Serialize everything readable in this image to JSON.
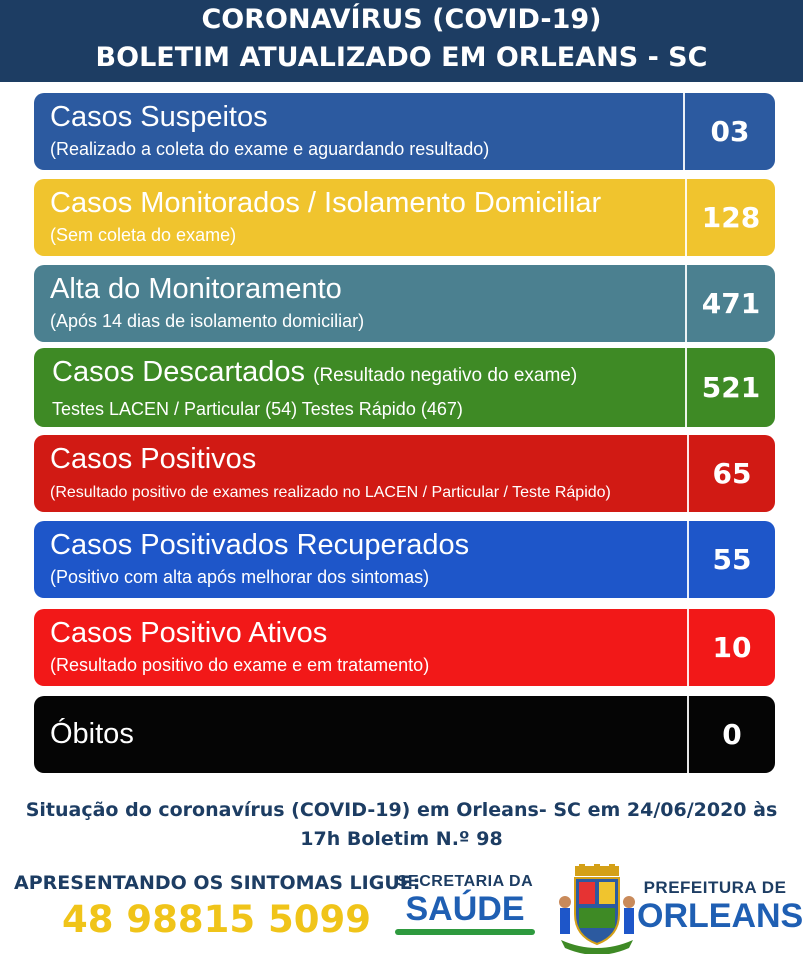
{
  "header": {
    "line1": "CORONAVÍRUS (COVID-19)",
    "line2": "BOLETIM ATUALIZADO EM ORLEANS - SC"
  },
  "cards": [
    {
      "title": "Casos Suspeitos",
      "sub": "(Realizado a coleta do exame e aguardando resultado)",
      "value": "03",
      "color": "#2c5aa0"
    },
    {
      "title": "Casos Monitorados / Isolamento Domiciliar",
      "sub": "(Sem coleta do exame)",
      "value": "128",
      "color": "#f0c42e"
    },
    {
      "title": "Alta do Monitoramento",
      "sub": "(Após 14 dias de isolamento domiciliar)",
      "value": "471",
      "color": "#4b8090"
    },
    {
      "title": "Casos Descartados",
      "note": "(Resultado negativo do exame)",
      "sub": "Testes LACEN / Particular  (54)   Testes Rápido  (467)",
      "value": "521",
      "color": "#3e8a25"
    },
    {
      "title": "Casos Positivos",
      "sub": "(Resultado positivo de exames realizado no LACEN / Particular / Teste Rápido)",
      "value": "65",
      "color": "#d11a14"
    },
    {
      "title": "Casos Positivados Recuperados",
      "sub": "(Positivo com alta após melhorar dos sintomas)",
      "value": "55",
      "color": "#1e56c9"
    },
    {
      "title": "Casos Positivo Ativos",
      "sub": "(Resultado positivo do exame e em tratamento)",
      "value": "10",
      "color": "#f21818"
    },
    {
      "title": "Óbitos",
      "sub": "",
      "value": "0",
      "color": "#050505"
    }
  ],
  "footer": {
    "status_line1": "Situação do coronavírus (COVID-19) em Orleans- SC em 24/06/2020 às",
    "status_line2": "17h Boletim N.º 98",
    "call_label": "APRESENTANDO OS SINTOMAS LIGUE:",
    "phone": "48 98815 5099",
    "saude_top": "SECRETARIA DA",
    "saude_big": "SAÚDE",
    "pref_top": "PREFEITURA DE",
    "pref_big": "ORLEANS"
  }
}
